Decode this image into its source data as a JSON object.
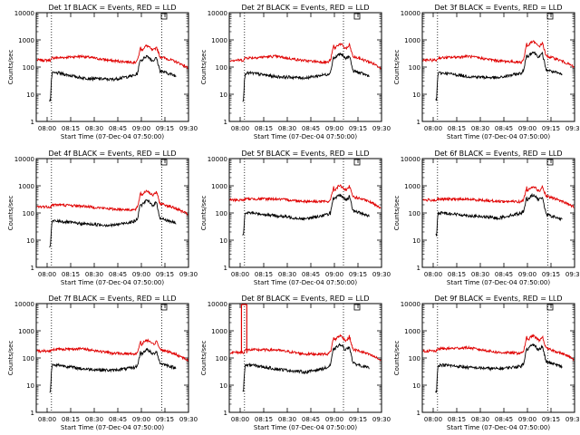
{
  "chart_data": [
    {
      "type": "line",
      "title": "Det 1f BLACK = Events, RED = LLD",
      "xlabel": "Start Time (07-Dec-04 07:50:00)",
      "ylabel": "Counts/sec",
      "xlim": [
        0,
        40
      ],
      "ylim": [
        1,
        10000
      ],
      "yscale": "log",
      "xticks": [
        "08:00",
        "08:15",
        "08:30",
        "08:45",
        "09:00",
        "09:15",
        "09:30"
      ],
      "yticks": [
        "1",
        "10",
        "100",
        "1000",
        "10000"
      ],
      "vlines": [
        4,
        33
      ],
      "red_level": [
        180,
        220,
        250,
        170,
        150,
        600,
        150
      ],
      "black_level": [
        6,
        60,
        40,
        35,
        50,
        250,
        45
      ],
      "spike": false
    },
    {
      "type": "line",
      "title": "Det 2f BLACK = Events, RED = LLD",
      "xlabel": "Start Time (07-Dec-04 07:50:00)",
      "ylabel": "Counts/sec",
      "xlim": [
        0,
        40
      ],
      "ylim": [
        1,
        10000
      ],
      "yscale": "log",
      "xticks": [
        "08:00",
        "08:15",
        "08:30",
        "08:45",
        "09:00",
        "09:15",
        "09:30"
      ],
      "yticks": [
        "1",
        "10",
        "100",
        "1000",
        "10000"
      ],
      "vlines": [
        4,
        30
      ],
      "red_level": [
        180,
        220,
        250,
        170,
        150,
        700,
        150
      ],
      "black_level": [
        6,
        60,
        45,
        40,
        55,
        300,
        45
      ],
      "spike": false
    },
    {
      "type": "line",
      "title": "Det 3f BLACK = Events, RED = LLD",
      "xlabel": "Start Time (07-Dec-04 07:50:00)",
      "ylabel": "Counts/sec",
      "xlim": [
        0,
        40
      ],
      "ylim": [
        1,
        10000
      ],
      "yscale": "log",
      "xticks": [
        "08:00",
        "08:15",
        "08:30",
        "08:45",
        "09:00",
        "09:15",
        "09:30"
      ],
      "yticks": [
        "1",
        "10",
        "100",
        "1000",
        "10000"
      ],
      "vlines": [
        4,
        33
      ],
      "red_level": [
        180,
        220,
        250,
        170,
        150,
        850,
        160
      ],
      "black_level": [
        6,
        60,
        45,
        40,
        60,
        350,
        50
      ],
      "spike": false
    },
    {
      "type": "line",
      "title": "Det 4f BLACK = Events, RED = LLD",
      "xlabel": "Start Time (07-Dec-04 07:50:00)",
      "ylabel": "Counts/sec",
      "xlim": [
        0,
        40
      ],
      "ylim": [
        1,
        10000
      ],
      "yscale": "log",
      "xticks": [
        "08:00",
        "08:15",
        "08:30",
        "08:45",
        "09:00",
        "09:15",
        "09:30"
      ],
      "yticks": [
        "1",
        "10",
        "100",
        "1000",
        "10000"
      ],
      "vlines": [
        4,
        33
      ],
      "red_level": [
        170,
        200,
        180,
        140,
        130,
        650,
        140
      ],
      "black_level": [
        6,
        50,
        40,
        35,
        50,
        280,
        40
      ],
      "spike": false
    },
    {
      "type": "line",
      "title": "Det 5f BLACK = Events, RED = LLD",
      "xlabel": "Start Time (07-Dec-04 07:50:00)",
      "ylabel": "Counts/sec",
      "xlim": [
        0,
        40
      ],
      "ylim": [
        1,
        10000
      ],
      "yscale": "log",
      "xticks": [
        "08:00",
        "08:15",
        "08:30",
        "08:45",
        "09:00",
        "09:15",
        "09:30"
      ],
      "yticks": [
        "1",
        "10",
        "100",
        "1000",
        "10000"
      ],
      "vlines": [
        4,
        30
      ],
      "red_level": [
        300,
        330,
        330,
        270,
        260,
        1000,
        250
      ],
      "black_level": [
        15,
        100,
        80,
        60,
        90,
        450,
        75
      ],
      "spike": false
    },
    {
      "type": "line",
      "title": "Det 6f BLACK = Events, RED = LLD",
      "xlabel": "Start Time (07-Dec-04 07:50:00)",
      "ylabel": "Counts/sec",
      "xlim": [
        0,
        40
      ],
      "ylim": [
        1,
        10000
      ],
      "yscale": "log",
      "xticks": [
        "08:00",
        "08:15",
        "08:30",
        "08:45",
        "09:00",
        "09:15",
        "09:30"
      ],
      "yticks": [
        "1",
        "10",
        "100",
        "1000",
        "10000"
      ],
      "vlines": [
        4,
        33
      ],
      "red_level": [
        300,
        320,
        320,
        270,
        260,
        950,
        260
      ],
      "black_level": [
        15,
        100,
        80,
        65,
        100,
        450,
        55
      ],
      "spike": false
    },
    {
      "type": "line",
      "title": "Det 7f BLACK = Events, RED = LLD",
      "xlabel": "Start Time (07-Dec-04 07:50:00)",
      "ylabel": "Counts/sec",
      "xlim": [
        0,
        40
      ],
      "ylim": [
        1,
        10000
      ],
      "yscale": "log",
      "xticks": [
        "08:00",
        "08:15",
        "08:30",
        "08:45",
        "09:00",
        "09:15",
        "09:30"
      ],
      "yticks": [
        "1",
        "10",
        "100",
        "1000",
        "10000"
      ],
      "vlines": [
        4,
        33
      ],
      "red_level": [
        180,
        210,
        220,
        150,
        140,
        450,
        130
      ],
      "black_level": [
        6,
        55,
        40,
        35,
        45,
        200,
        40
      ],
      "spike": false
    },
    {
      "type": "line",
      "title": "Det 8f BLACK = Events, RED = LLD",
      "xlabel": "Start Time (07-Dec-04 07:50:00)",
      "ylabel": "Counts/sec",
      "xlim": [
        0,
        40
      ],
      "ylim": [
        1,
        10000
      ],
      "yscale": "log",
      "xticks": [
        "08:00",
        "08:15",
        "08:30",
        "08:45",
        "09:00",
        "09:15",
        "09:30"
      ],
      "yticks": [
        "1",
        "10",
        "100",
        "1000",
        "10000"
      ],
      "vlines": [
        4,
        30
      ],
      "red_level": [
        160,
        200,
        200,
        140,
        140,
        650,
        130
      ],
      "black_level": [
        6,
        55,
        40,
        30,
        45,
        300,
        40
      ],
      "spike": true
    },
    {
      "type": "line",
      "title": "Det 9f BLACK = Events, RED = LLD",
      "xlabel": "Start Time (07-Dec-04 07:50:00)",
      "ylabel": "Counts/sec",
      "xlim": [
        0,
        40
      ],
      "ylim": [
        1,
        10000
      ],
      "yscale": "log",
      "xticks": [
        "08:00",
        "08:15",
        "08:30",
        "08:45",
        "09:00",
        "09:15",
        "09:30"
      ],
      "yticks": [
        "1",
        "10",
        "100",
        "1000",
        "10000"
      ],
      "vlines": [
        4,
        33
      ],
      "red_level": [
        180,
        220,
        240,
        160,
        150,
        650,
        140
      ],
      "black_level": [
        6,
        55,
        45,
        40,
        50,
        300,
        45
      ],
      "spike": false
    }
  ],
  "colors": {
    "events": "#000000",
    "lld": "#e00000",
    "background": "#ffffff"
  }
}
